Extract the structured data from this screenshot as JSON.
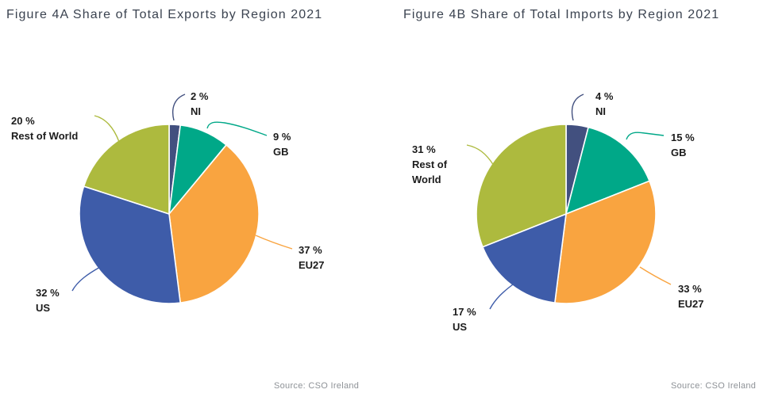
{
  "chart_data": [
    {
      "type": "pie",
      "title": "Figure 4A Share of Total Exports by Region 2021",
      "source": "Source: CSO Ireland",
      "unit": "%",
      "start_angle_deg": 0,
      "direction": "clockwise",
      "labels_position": "outside-with-leader-lines",
      "legend": "none",
      "categories": [
        "NI",
        "GB",
        "EU27",
        "US",
        "Rest of World"
      ],
      "values": [
        2,
        9,
        37,
        32,
        20
      ],
      "labels": [
        "2 %",
        "9 %",
        "37 %",
        "32 %",
        "20 %"
      ],
      "colors": [
        "#42507f",
        "#00a888",
        "#f9a440",
        "#3e5ca9",
        "#adba3e"
      ]
    },
    {
      "type": "pie",
      "title": "Figure 4B Share of Total Imports by Region 2021",
      "source": "Source: CSO Ireland",
      "unit": "%",
      "start_angle_deg": 0,
      "direction": "clockwise",
      "labels_position": "outside-with-leader-lines",
      "legend": "none",
      "categories": [
        "NI",
        "GB",
        "EU27",
        "US",
        "Rest of World"
      ],
      "values": [
        4,
        15,
        33,
        17,
        31
      ],
      "labels": [
        "4 %",
        "15 %",
        "33 %",
        "17 %",
        "31 %"
      ],
      "colors": [
        "#42507f",
        "#00a888",
        "#f9a440",
        "#3e5ca9",
        "#adba3e"
      ]
    }
  ]
}
